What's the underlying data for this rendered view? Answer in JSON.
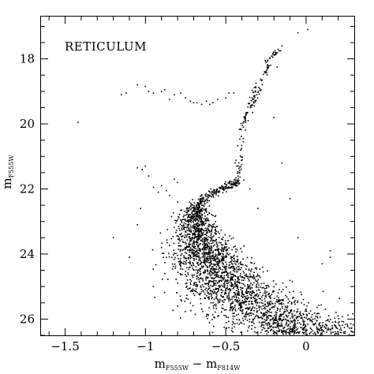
{
  "chart_data": {
    "type": "scatter",
    "title": "RETICULUM",
    "xlabel": {
      "main": "m",
      "sub1": "F555W",
      "minus": " − ",
      "sub2": "F814W"
    },
    "ylabel": {
      "main": "m",
      "sub": "F555W"
    },
    "xlim": [
      -1.65,
      0.3
    ],
    "ylim": [
      26.5,
      16.7
    ],
    "y_inverted": true,
    "xticks": [
      -1.5,
      -1,
      -0.5,
      0
    ],
    "xtick_labels": [
      "−1.5",
      "−1",
      "−0.5",
      "0"
    ],
    "yticks": [
      18,
      20,
      22,
      24,
      26
    ],
    "ytick_labels": [
      "18",
      "20",
      "22",
      "24",
      "26"
    ],
    "grid": false,
    "legend": "none",
    "marker_color": "#000000",
    "main_sequence_ridge": [
      {
        "mag": 22.5,
        "color": -0.68
      },
      {
        "mag": 23.0,
        "color": -0.69
      },
      {
        "mag": 23.5,
        "color": -0.665
      },
      {
        "mag": 24.0,
        "color": -0.625
      },
      {
        "mag": 24.5,
        "color": -0.56
      },
      {
        "mag": 25.0,
        "color": -0.47
      },
      {
        "mag": 25.4,
        "color": -0.38
      },
      {
        "mag": 25.8,
        "color": -0.25
      },
      {
        "mag": 26.2,
        "color": -0.1
      },
      {
        "mag": 26.5,
        "color": 0.05
      }
    ],
    "subgiant_branch": [
      {
        "mag": 22.5,
        "color": -0.68
      },
      {
        "mag": 22.25,
        "color": -0.63
      },
      {
        "mag": 22.05,
        "color": -0.55
      },
      {
        "mag": 21.9,
        "color": -0.47
      },
      {
        "mag": 21.75,
        "color": -0.43
      }
    ],
    "red_giant_branch": [
      {
        "mag": 21.75,
        "color": -0.43
      },
      {
        "mag": 21.0,
        "color": -0.41
      },
      {
        "mag": 20.0,
        "color": -0.39
      },
      {
        "mag": 19.5,
        "color": -0.35
      },
      {
        "mag": 19.0,
        "color": -0.31
      },
      {
        "mag": 18.5,
        "color": -0.27
      },
      {
        "mag": 18.0,
        "color": -0.22
      },
      {
        "mag": 17.7,
        "color": -0.17
      }
    ],
    "horizontal_branch": [
      {
        "x": -1.15,
        "y": 19.1
      },
      {
        "x": -1.12,
        "y": 19.05
      },
      {
        "x": -1.05,
        "y": 18.8
      },
      {
        "x": -1.0,
        "y": 18.85
      },
      {
        "x": -0.98,
        "y": 19.0
      },
      {
        "x": -0.95,
        "y": 19.05
      },
      {
        "x": -0.9,
        "y": 19.0
      },
      {
        "x": -0.88,
        "y": 18.95
      },
      {
        "x": -0.85,
        "y": 19.25
      },
      {
        "x": -0.82,
        "y": 19.1
      },
      {
        "x": -0.78,
        "y": 19.05
      },
      {
        "x": -0.75,
        "y": 19.2
      },
      {
        "x": -0.72,
        "y": 19.3
      },
      {
        "x": -0.7,
        "y": 19.35
      },
      {
        "x": -0.68,
        "y": 19.35
      },
      {
        "x": -0.65,
        "y": 19.4
      },
      {
        "x": -0.62,
        "y": 19.3
      },
      {
        "x": -0.6,
        "y": 19.4
      },
      {
        "x": -0.58,
        "y": 19.35
      },
      {
        "x": -0.55,
        "y": 19.25
      },
      {
        "x": -0.5,
        "y": 19.2
      },
      {
        "x": -0.48,
        "y": 19.05
      },
      {
        "x": -0.45,
        "y": 19.05
      }
    ],
    "blue_stragglers": [
      {
        "x": -1.42,
        "y": 19.95
      },
      {
        "x": -1.05,
        "y": 21.35
      },
      {
        "x": -1.02,
        "y": 21.4
      },
      {
        "x": -1.0,
        "y": 21.3
      },
      {
        "x": -0.98,
        "y": 21.6
      },
      {
        "x": -0.95,
        "y": 21.95
      },
      {
        "x": -0.92,
        "y": 22.1
      },
      {
        "x": -0.9,
        "y": 21.9
      },
      {
        "x": -0.87,
        "y": 22.05
      },
      {
        "x": -0.85,
        "y": 22.2
      },
      {
        "x": -0.82,
        "y": 21.7
      },
      {
        "x": -0.8,
        "y": 21.8
      },
      {
        "x": -1.03,
        "y": 22.6
      },
      {
        "x": -1.2,
        "y": 23.5
      },
      {
        "x": -1.1,
        "y": 24.1
      },
      {
        "x": -0.8,
        "y": 22.4
      }
    ],
    "field_scatter": [
      {
        "x": -0.05,
        "y": 17.2
      },
      {
        "x": 0.01,
        "y": 17.1
      },
      {
        "x": -0.15,
        "y": 17.6
      },
      {
        "x": -0.18,
        "y": 18.25
      },
      {
        "x": -0.2,
        "y": 19.8
      },
      {
        "x": -0.15,
        "y": 21.2
      },
      {
        "x": -0.1,
        "y": 22.3
      },
      {
        "x": -0.3,
        "y": 22.6
      },
      {
        "x": 0.15,
        "y": 23.9
      },
      {
        "x": 0.1,
        "y": 24.3
      },
      {
        "x": 0.15,
        "y": 24.1
      },
      {
        "x": -0.05,
        "y": 23.5
      },
      {
        "x": 0.12,
        "y": 25.7
      },
      {
        "x": 0.2,
        "y": 25.9
      },
      {
        "x": -0.35,
        "y": 22.0
      },
      {
        "x": -0.45,
        "y": 24.4
      },
      {
        "x": -1.05,
        "y": 23.1
      },
      {
        "x": -0.9,
        "y": 23.8
      },
      {
        "x": -0.88,
        "y": 24.6
      },
      {
        "x": -0.95,
        "y": 25.0
      },
      {
        "x": -0.8,
        "y": 25.6
      }
    ],
    "main_sequence_count": 2600,
    "main_sequence_spread_color_faint": 0.18
  }
}
